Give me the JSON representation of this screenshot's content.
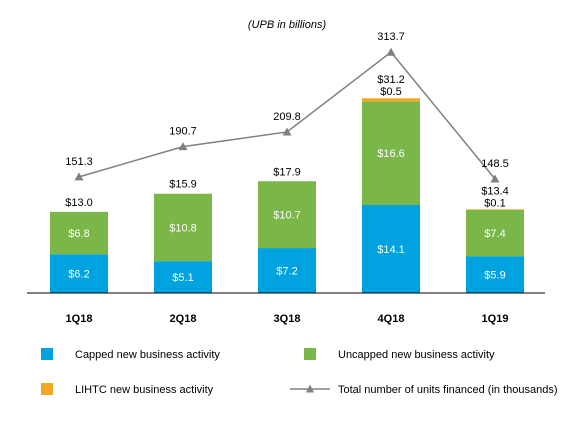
{
  "chart_data": {
    "type": "bar",
    "subtitle": "(UPB in billions)",
    "categories": [
      "1Q18",
      "2Q18",
      "3Q18",
      "4Q18",
      "1Q19"
    ],
    "ylim": [
      0,
      33
    ],
    "y2lim": [
      0,
      340
    ],
    "grid": false,
    "legend_position": "bottom",
    "series": [
      {
        "name": "Capped new business activity",
        "kind": "bar",
        "color": "#00a3e0",
        "values": [
          6.2,
          5.1,
          7.2,
          14.1,
          5.9
        ],
        "labels": [
          "$6.2",
          "$5.1",
          "$7.2",
          "$14.1",
          "$5.9"
        ]
      },
      {
        "name": "Uncapped new business activity",
        "kind": "bar",
        "color": "#7ab648",
        "values": [
          6.8,
          10.8,
          10.7,
          16.6,
          7.4
        ],
        "labels": [
          "$6.8",
          "$10.8",
          "$10.7",
          "$16.6",
          "$7.4"
        ]
      },
      {
        "name": "LIHTC new business activity",
        "kind": "bar",
        "color": "#f5a623",
        "values": [
          0,
          0,
          0,
          0.5,
          0.1
        ],
        "labels": [
          "",
          "",
          "",
          "$0.5",
          "$0.1"
        ]
      },
      {
        "name": "Total number of units financed (in thousands)",
        "kind": "line",
        "color": "#808080",
        "values": [
          151.3,
          190.7,
          209.8,
          313.7,
          148.5
        ],
        "labels": [
          "151.3",
          "190.7",
          "209.8",
          "313.7",
          "148.5"
        ]
      }
    ],
    "totals": [
      "$13.0",
      "$15.9",
      "$17.9",
      "$31.2",
      "$13.4"
    ]
  }
}
